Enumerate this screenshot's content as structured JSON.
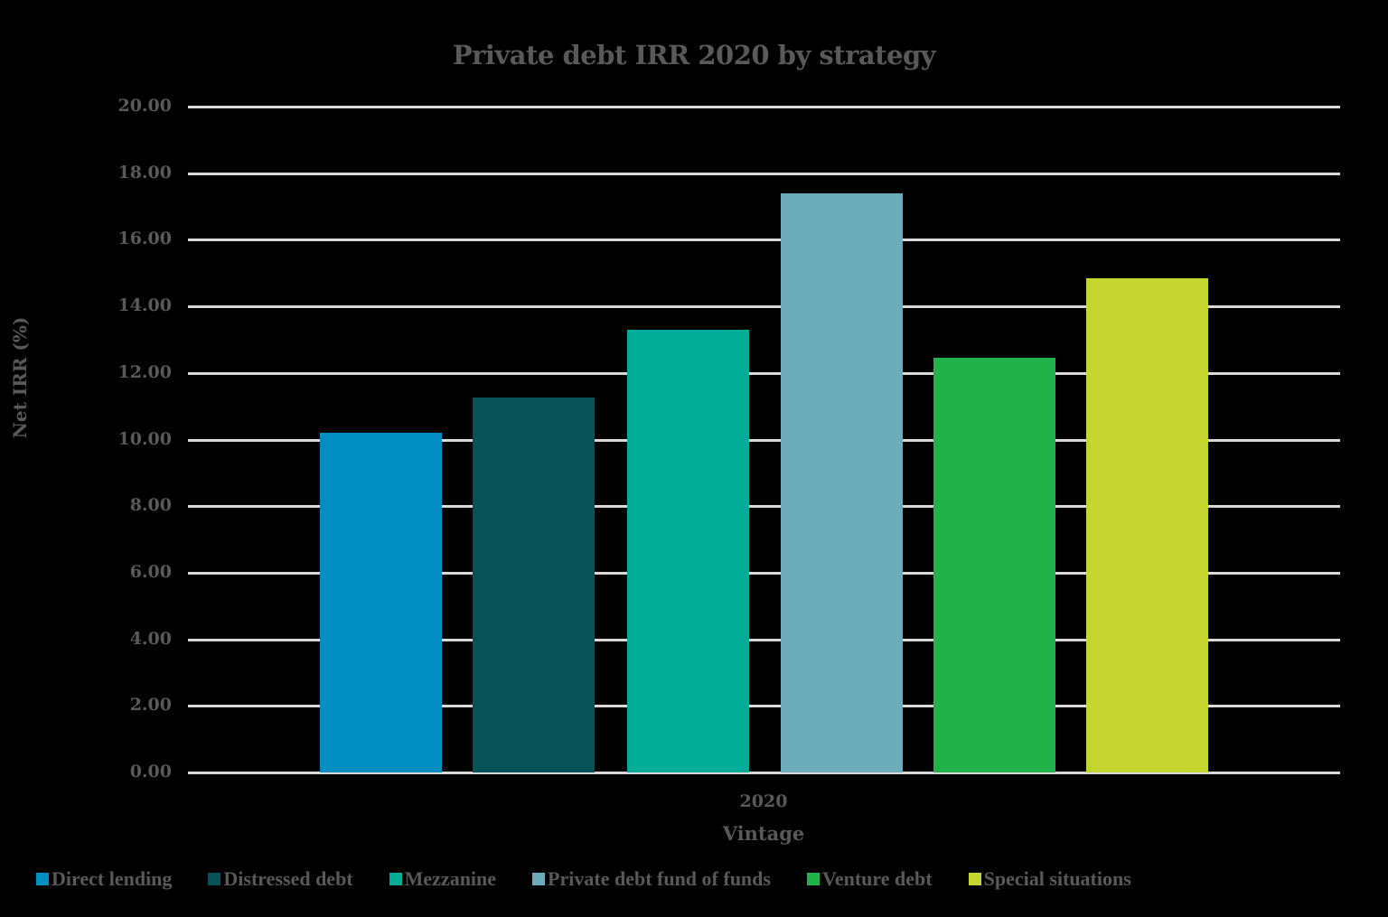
{
  "chart_data": {
    "type": "bar",
    "title": "Private debt IRR 2020 by strategy",
    "xlabel": "Vintage",
    "ylabel": "Net IRR (%)",
    "categories": [
      "2020"
    ],
    "ylim": [
      0,
      20
    ],
    "yticks": [
      "0.00",
      "2.00",
      "4.00",
      "6.00",
      "8.00",
      "10.00",
      "12.00",
      "14.00",
      "16.00",
      "18.00",
      "20.00"
    ],
    "grid": true,
    "legend_position": "bottom",
    "series": [
      {
        "name": "Direct lending",
        "values": [
          10.2
        ],
        "color": "#008FC0"
      },
      {
        "name": "Distressed debt",
        "values": [
          11.25
        ],
        "color": "#075258"
      },
      {
        "name": "Mezzanine",
        "values": [
          13.3
        ],
        "color": "#00AC96"
      },
      {
        "name": "Private debt fund of funds",
        "values": [
          17.4
        ],
        "color": "#6DADBB"
      },
      {
        "name": "Venture debt",
        "values": [
          12.45
        ],
        "color": "#22B24B"
      },
      {
        "name": "Special situations",
        "values": [
          14.85
        ],
        "color": "#C4D52F"
      }
    ]
  }
}
